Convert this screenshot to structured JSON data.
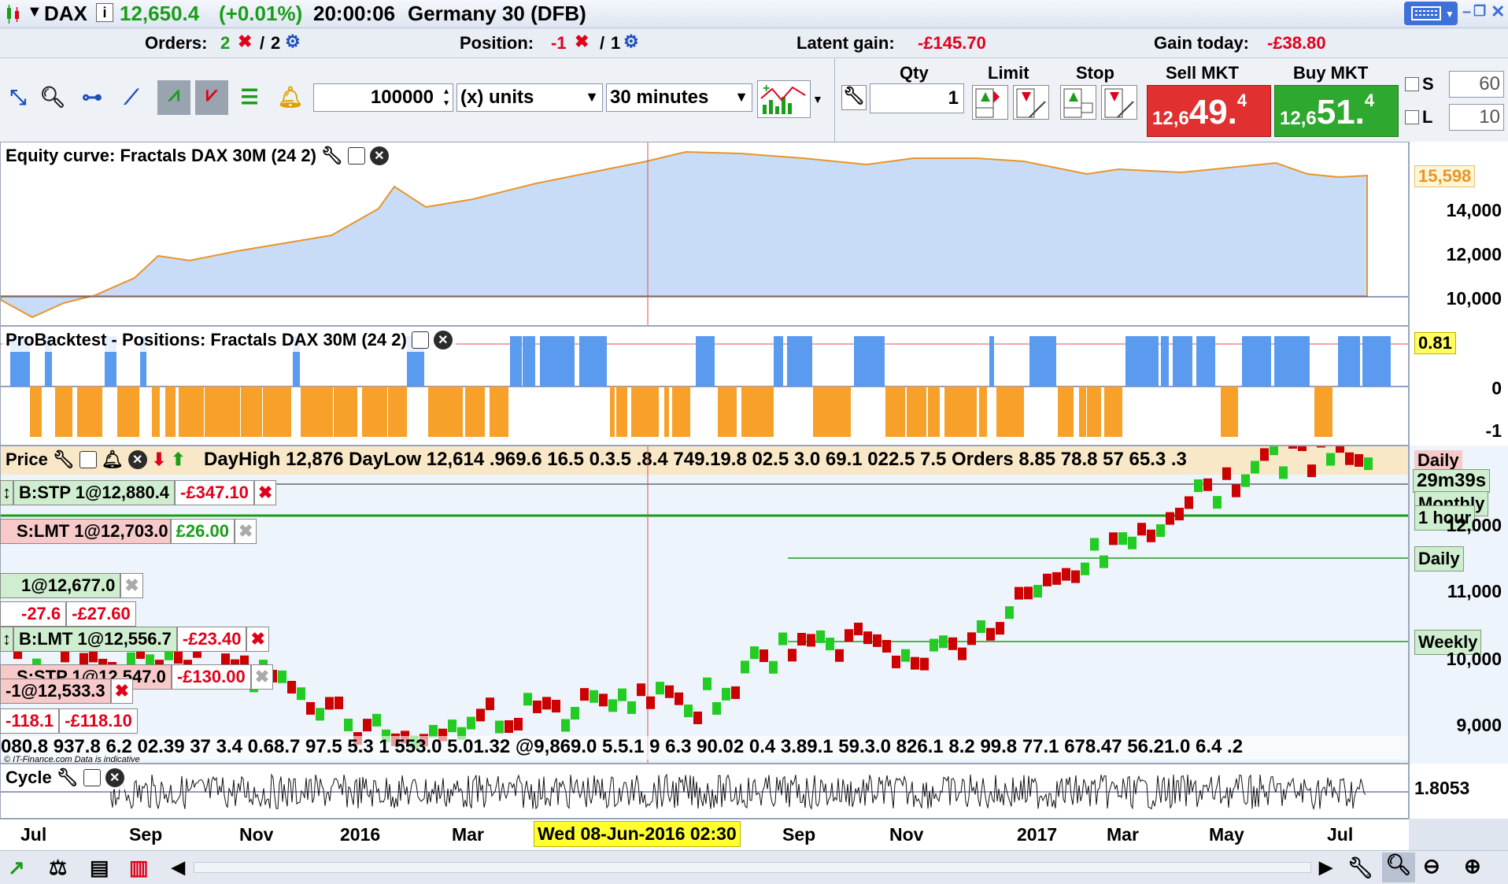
{
  "header": {
    "symbol": "DAX",
    "price": "12,650.4",
    "change": "(+0.01%)",
    "time": "20:00:06",
    "instrument": "Germany 30 (DFB)"
  },
  "status": {
    "orders_label": "Orders:",
    "orders_a": "2",
    "orders_sep": "/",
    "orders_b": "2",
    "position_label": "Position:",
    "position_a": "-1",
    "position_sep": "/",
    "position_b": "1",
    "latent_label": "Latent gain:",
    "latent_value": "-£145.70",
    "today_label": "Gain today:",
    "today_value": "-£38.80"
  },
  "toolbar": {
    "amount": "100000",
    "units": "(x) units",
    "timeframe": "30 minutes"
  },
  "trade": {
    "qty_label": "Qty",
    "limit_label": "Limit",
    "stop_label": "Stop",
    "sell_label": "Sell MKT",
    "buy_label": "Buy MKT",
    "qty_value": "1",
    "sell_prefix": "12,6",
    "sell_big": "49.",
    "sell_sup": "4",
    "buy_prefix": "12,6",
    "buy_big": "51.",
    "buy_sup": "4",
    "s_label": "S",
    "s_value": "60",
    "l_label": "L",
    "l_value": "10"
  },
  "equity": {
    "title": "Equity curve: Fractals DAX 30M (24 2)",
    "current": "15,598",
    "ticks": [
      "14,000",
      "12,000",
      "10,000"
    ]
  },
  "positions": {
    "title": "ProBacktest - Positions: Fractals DAX 30M (24 2)",
    "current": "0.81",
    "ticks": [
      "0",
      "-1"
    ]
  },
  "price": {
    "title": "Price",
    "overlay_text": "DayHigh 12,876 DayLow 12,614 .969.6 16.5 0.3.5 .8.4 749.19.8 02.5 3.0 69.1 022.5 7.5 Orders 8.85 78.8 57 65.3 .3",
    "countdown": "29m39s",
    "label_daily_top": "Daily",
    "label_monthly": "Monthly",
    "label_1hour": "1 hour",
    "label_daily": "Daily",
    "label_weekly": "Weekly",
    "ticks": [
      "12,000",
      "11,000",
      "10,000",
      "9,000"
    ],
    "bottom_text": "080.8 937.8 6.2 02.39 37 3.4 0.68.7 97.5 5.3 1 553.0 5.01.32 @9,869.0 5.5.1 9 6.3 90.02 0.4 3.89.1 59.3.0 826.1 8.2 99.8 77.1 678.47 56.21.0 6.4 .2",
    "watermark": "© IT-Finance.com Data is indicative",
    "tickets": {
      "t1_label": "B:STP 1@12,880.4",
      "t1_gain": "-£347.10",
      "t2_label": "S:LMT 1@12,703.0",
      "t2_gain": "£26.00",
      "t3_label": "1@12,677.0",
      "t3_pts": "-27.6",
      "t3_gain": "-£27.60",
      "t4_label": "B:LMT 1@12,556.7",
      "t4_gain": "-£23.40",
      "t5_label": "S:STP 1@12,547.0",
      "t5_gain": "-£130.00",
      "t6_label": "-1@12,533.3",
      "t6_pts": "-118.1",
      "t6_gain": "-£118.10"
    }
  },
  "cycle": {
    "title": "Cycle",
    "current": "1.8053"
  },
  "xaxis": {
    "labels": [
      "Jul",
      "Sep",
      "Nov",
      "2016",
      "Mar",
      "Sep",
      "Nov",
      "2017",
      "Mar",
      "May",
      "Jul"
    ],
    "cursor": "Wed 08-Jun-2016 02:30"
  },
  "colors": {
    "accent": "#1a4fc0",
    "sell": "#e03030",
    "buy": "#2ea82e",
    "equity_fill": "#c8dcf7",
    "pos_long": "#5b9bef",
    "pos_short": "#f7a12a"
  }
}
